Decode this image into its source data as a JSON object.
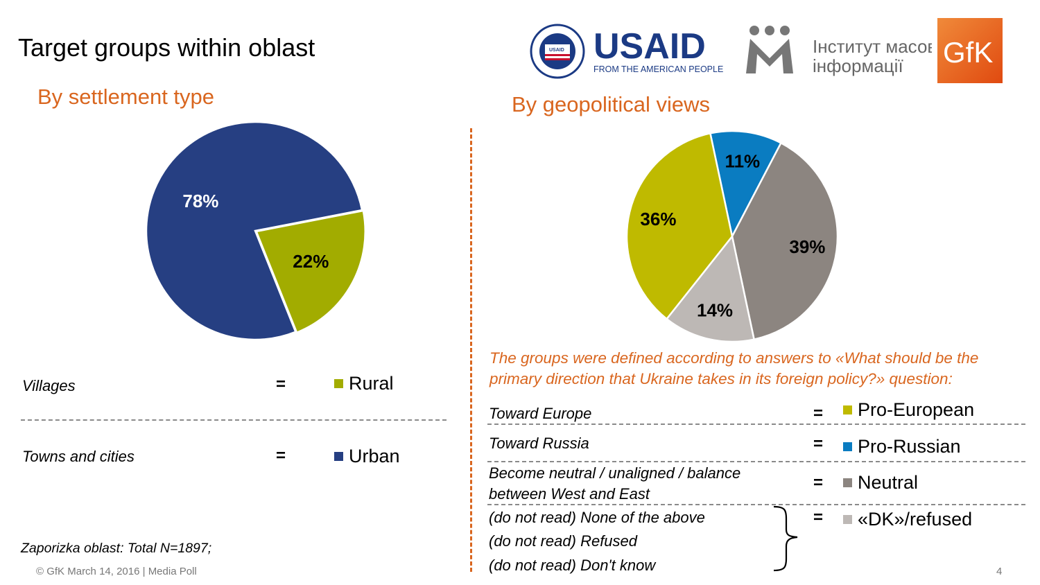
{
  "header": {
    "title": "Target groups within oblast",
    "usaid_wordmark": "USAID",
    "usaid_tagline": "FROM THE AMERICAN PEOPLE",
    "usaid_seal_text": "UNITED STATES AGENCY INTERNATIONAL DEVELOPMENT",
    "imi_line1": "Інститут масової",
    "imi_line2": "інформації",
    "gfk_logo": "GfK"
  },
  "colors": {
    "accent": "#D9661F",
    "urban": "#263F82",
    "rural": "#A2AC00",
    "pro_european": "#BFBA00",
    "pro_russian": "#0A7CC1",
    "neutral": "#8C8580",
    "dk_refused": "#BDB8B5",
    "usaid_blue": "#1B3A84",
    "usaid_red": "#C8102E",
    "gfk_orange": "#E85A1F"
  },
  "left": {
    "section_title": "By settlement type",
    "rows": [
      {
        "label": "Villages",
        "equals": "=",
        "legend": "Rural"
      },
      {
        "label": "Towns and cities",
        "equals": "=",
        "legend": "Urban"
      }
    ],
    "sample_note": "Zaporizka oblast: Total N=1897;"
  },
  "right": {
    "section_title": "By geopolitical views",
    "question_line1": "The groups were defined according to answers to «What should be the",
    "question_line2": "primary direction that Ukraine takes in its foreign policy?» question:",
    "rows": [
      {
        "label": "Toward Europe",
        "equals": "=",
        "legend": "Pro-European"
      },
      {
        "label": "Toward Russia",
        "equals": "=",
        "legend": "Pro-Russian"
      },
      {
        "label_line1": "Become neutral / unaligned / balance",
        "label_line2": "between West and East",
        "equals": "=",
        "legend": "Neutral"
      },
      {
        "sub_lines": [
          "(do not read) None of the above",
          "(do not read) Refused",
          "(do not read) Don't know"
        ],
        "equals": "=",
        "legend": "«DK»/refused"
      }
    ]
  },
  "footer": {
    "copyright": "© GfK March 14, 2016 | Media Poll",
    "page_number": "4"
  },
  "chart_data": [
    {
      "type": "pie",
      "series": [
        {
          "category": "Urban",
          "value": 78,
          "label": "78%",
          "color": "#263F82"
        },
        {
          "category": "Rural",
          "value": 22,
          "label": "22%",
          "color": "#A2AC00"
        }
      ],
      "start": "12 o'clock, counterclockwise from Rural at 3 o'clock",
      "legend": "below"
    },
    {
      "type": "pie",
      "series": [
        {
          "category": "Pro-Russian",
          "value": 11,
          "label": "11%",
          "color": "#0A7CC1"
        },
        {
          "category": "Neutral",
          "value": 39,
          "label": "39%",
          "color": "#8C8580"
        },
        {
          "category": "«DK»/refused",
          "value": 14,
          "label": "14%",
          "color": "#BDB8B5"
        },
        {
          "category": "Pro-European",
          "value": 36,
          "label": "36%",
          "color": "#BFBA00"
        }
      ],
      "start": "near 12 o'clock, clockwise",
      "legend": "below"
    }
  ]
}
